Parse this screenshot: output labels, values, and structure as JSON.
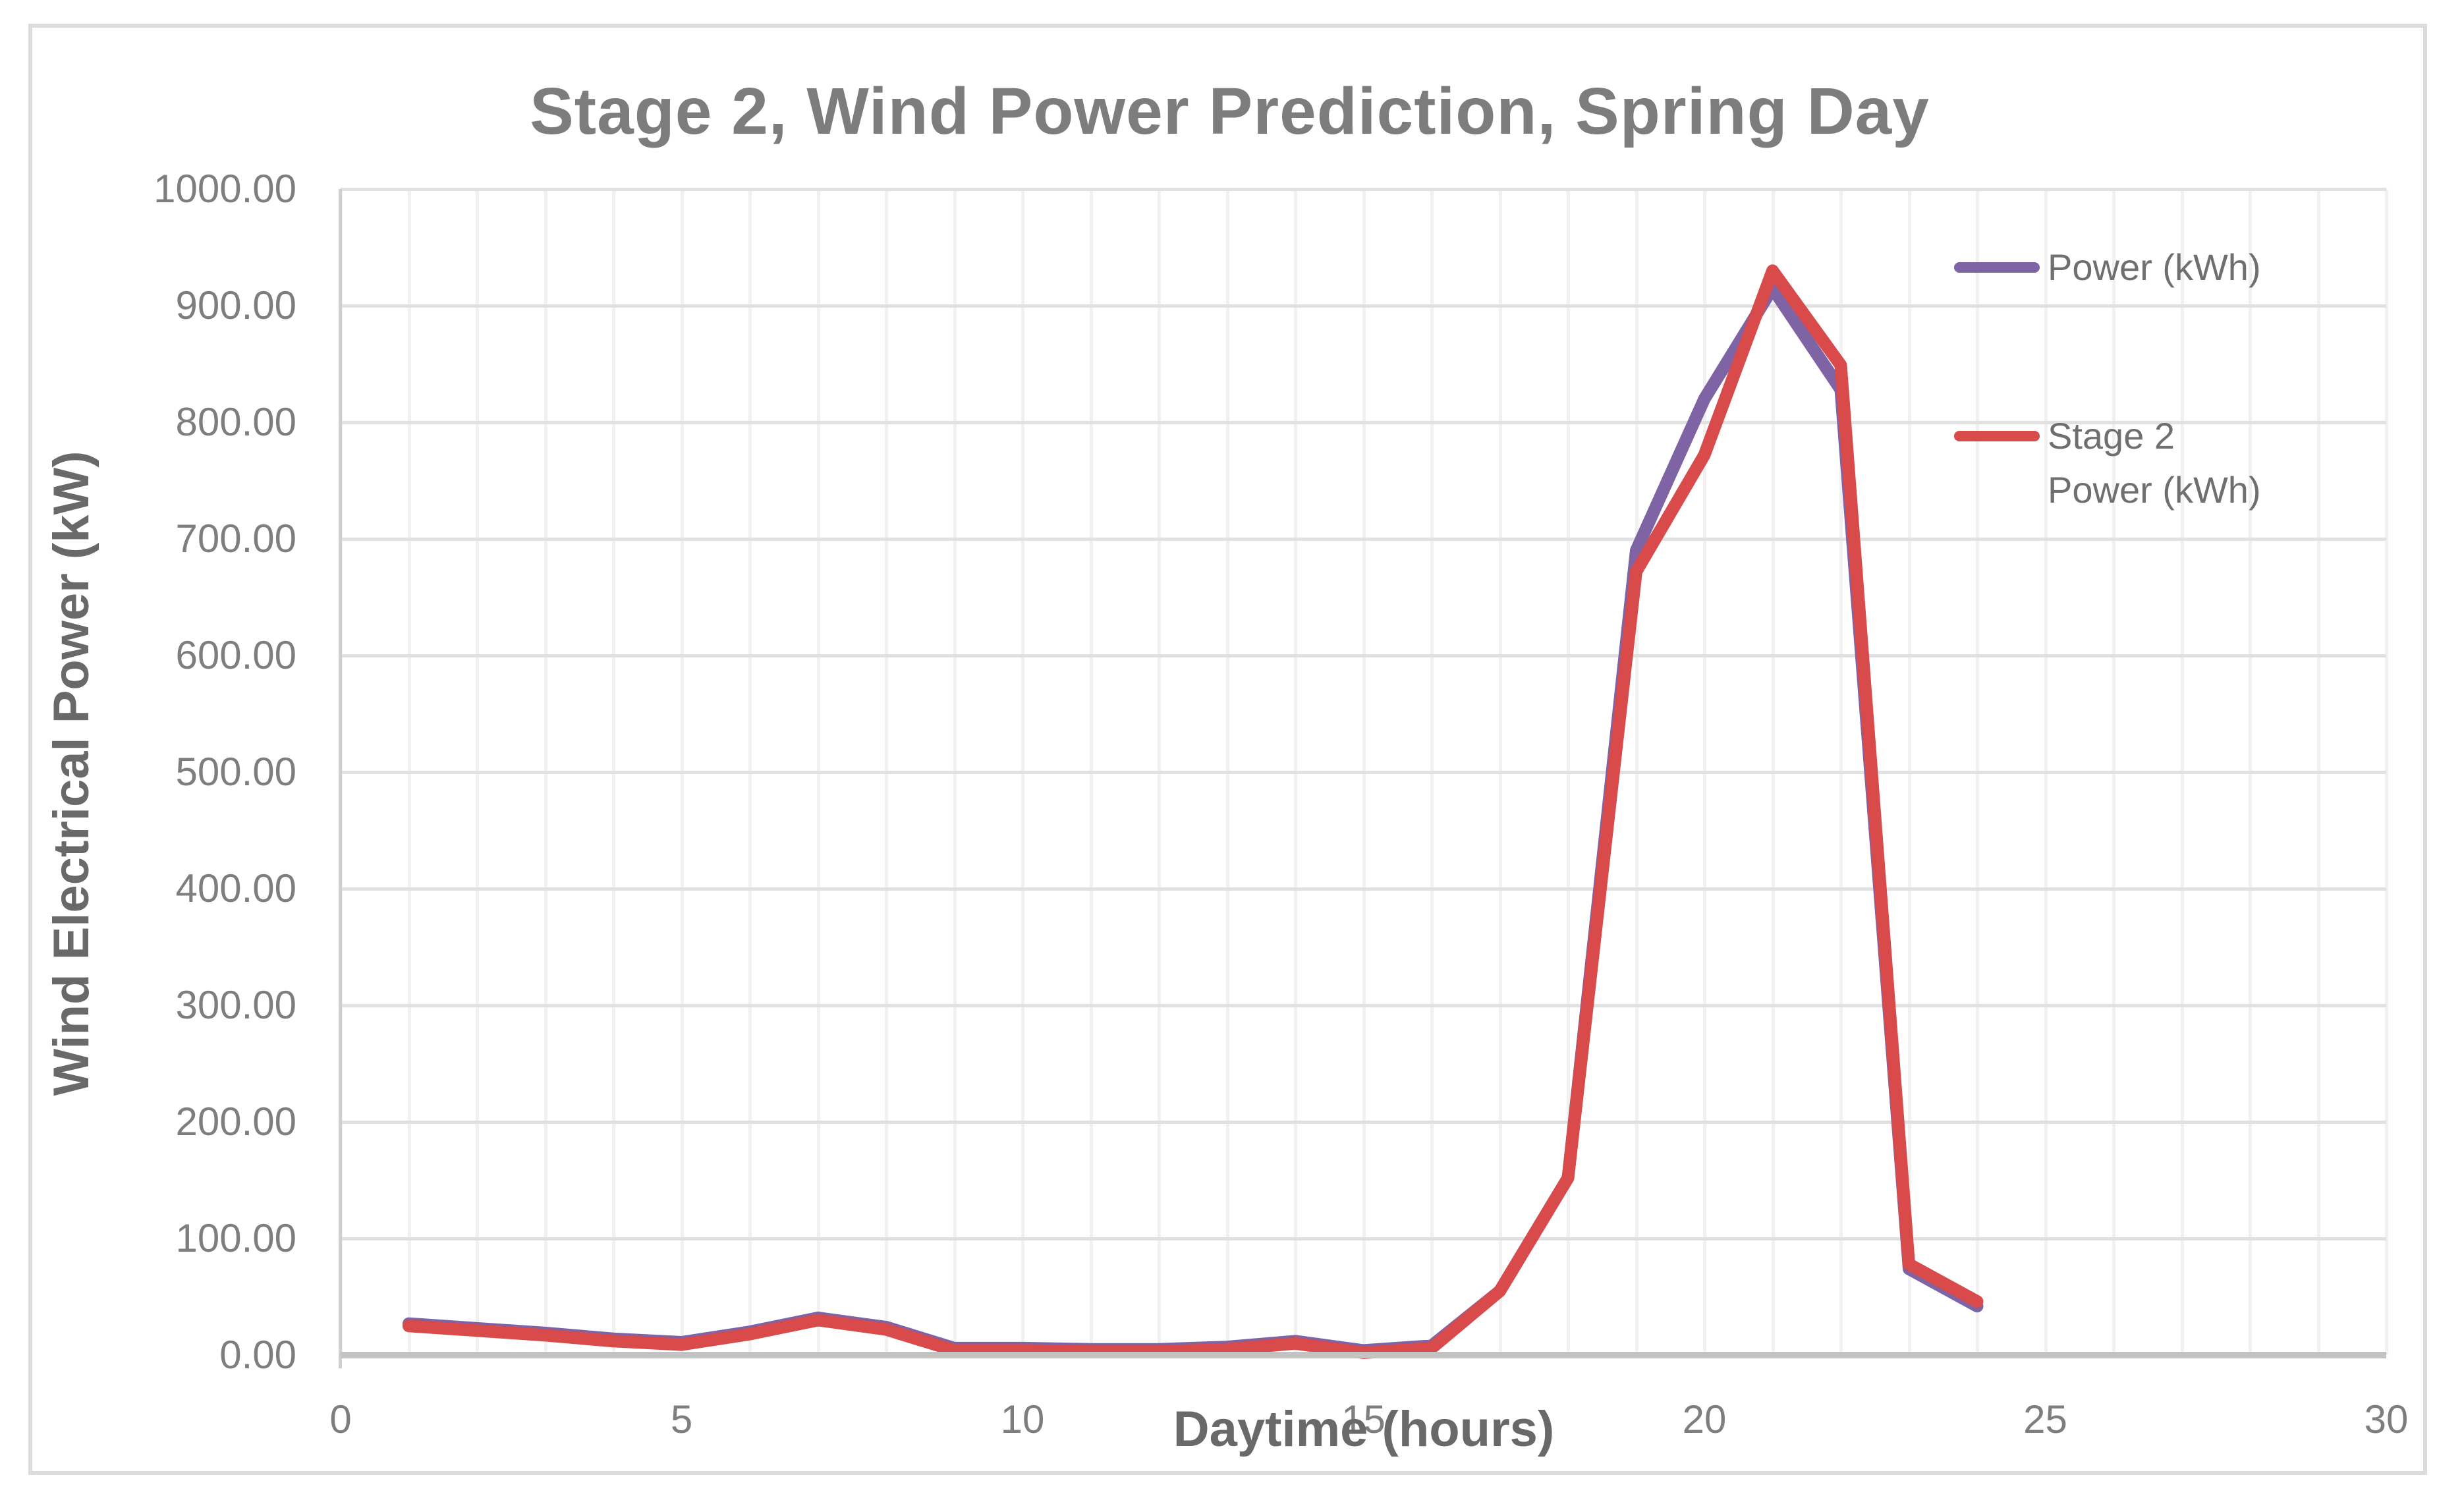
{
  "chart_data": {
    "type": "line",
    "title": "Stage 2, Wind Power Prediction, Spring Day",
    "xlabel": "Daytime (hours)",
    "ylabel": "Wind Electrical Power (kW)",
    "xlim": [
      0,
      30
    ],
    "ylim": [
      0,
      1000
    ],
    "grid": "on",
    "x_gridline_step": 1,
    "y_gridline_step": 100,
    "x_ticks": [
      "0",
      "5",
      "10",
      "15",
      "20",
      "25",
      "30"
    ],
    "x_tick_values": [
      0,
      5,
      10,
      15,
      20,
      25,
      30
    ],
    "y_ticks": [
      "1000.00",
      "900.00",
      "800.00",
      "700.00",
      "600.00",
      "500.00",
      "400.00",
      "300.00",
      "200.00",
      "100.00",
      "0.00"
    ],
    "y_tick_values": [
      1000,
      900,
      800,
      700,
      600,
      500,
      400,
      300,
      200,
      100,
      0
    ],
    "x": [
      1,
      2,
      3,
      4,
      5,
      6,
      7,
      8,
      9,
      10,
      11,
      12,
      13,
      14,
      15,
      16,
      17,
      18,
      19,
      20,
      21,
      22,
      23,
      24
    ],
    "series": [
      {
        "name": "Power (kWh)",
        "color": "#7E63A5",
        "values": [
          27,
          23,
          19,
          14,
          11,
          20,
          32,
          24,
          6,
          6,
          5,
          5,
          7,
          12,
          4,
          8,
          55,
          152,
          690,
          820,
          915,
          828,
          74,
          42
        ]
      },
      {
        "name": "Stage 2 Power (kWh)",
        "color": "#D94A4A",
        "values": [
          25,
          21,
          17,
          12,
          9,
          18,
          30,
          22,
          4,
          4,
          3,
          3,
          5,
          10,
          2,
          6,
          55,
          152,
          672,
          772,
          930,
          849,
          78,
          46
        ]
      }
    ],
    "legend": {
      "position": "right",
      "entries": [
        {
          "line1": "Power (kWh)",
          "line2": "",
          "color": "#7E63A5"
        },
        {
          "line1": "Stage 2",
          "line2": "Power (kWh)",
          "color": "#D94A4A"
        }
      ]
    },
    "colors": {
      "grid_vertical": "#F1F1F1",
      "grid_horizontal": "#E1E1E1",
      "axis_line": "#C3C3C3",
      "chart_border": "#DCDCDC",
      "title_text": "#7D7D7D",
      "tick_text": "#7E7E7E"
    }
  }
}
